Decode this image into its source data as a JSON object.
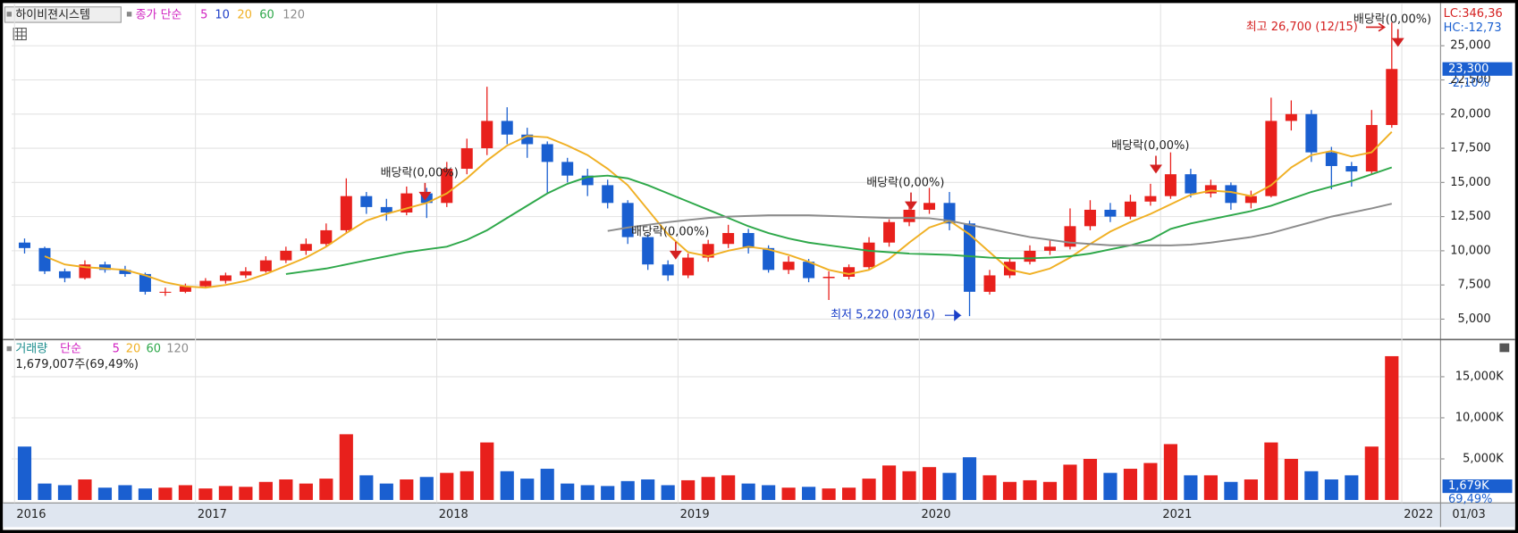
{
  "chart_data": [
    {
      "type": "candlestick",
      "title": "하이비젼시스템",
      "ma_caption": "종가 단순",
      "ma_labels": [
        "5",
        "10",
        "20",
        "60",
        "120"
      ],
      "ma_colors": [
        "#d020c0",
        "#2040c8",
        "#f0b024",
        "#2ea84a",
        "#8c8c8c"
      ],
      "categories": [
        "2016",
        null,
        null,
        null,
        null,
        null,
        null,
        null,
        null,
        "2017",
        null,
        null,
        null,
        null,
        null,
        null,
        null,
        null,
        null,
        null,
        null,
        "2018",
        null,
        null,
        null,
        null,
        null,
        null,
        null,
        null,
        null,
        null,
        null,
        "2019",
        null,
        null,
        null,
        null,
        null,
        null,
        null,
        null,
        null,
        null,
        null,
        "2020",
        null,
        null,
        null,
        null,
        null,
        null,
        null,
        null,
        null,
        null,
        null,
        "2021",
        null,
        null,
        null,
        null,
        null,
        null,
        null,
        null,
        null,
        null,
        null,
        "2022"
      ],
      "open": [
        10600,
        10200,
        8500,
        8000,
        9000,
        8600,
        8300,
        7000,
        7000,
        7400,
        7800,
        8200,
        8500,
        9300,
        10000,
        10500,
        11500,
        14000,
        13200,
        12800,
        14200,
        13500,
        16000,
        17500,
        19500,
        18500,
        17800,
        16500,
        15500,
        14800,
        13500,
        11000,
        9000,
        8200,
        9500,
        10500,
        11300,
        10200,
        8600,
        9200,
        8000,
        8100,
        8800,
        10600,
        12100,
        13000,
        13500,
        12000,
        7000,
        8200,
        9200,
        10000,
        10300,
        11800,
        13000,
        12500,
        13600,
        14000,
        15600,
        14200,
        14800,
        13500,
        14000,
        19500,
        20000,
        17200,
        16200,
        15800,
        19200,
        null
      ],
      "high": [
        10900,
        10300,
        8700,
        9300,
        9200,
        8900,
        8400,
        7300,
        7600,
        8000,
        8400,
        8800,
        9600,
        10300,
        10900,
        12000,
        15300,
        14300,
        13800,
        14700,
        14600,
        16500,
        18200,
        22000,
        20500,
        19000,
        18000,
        16800,
        16000,
        15200,
        13700,
        11200,
        9300,
        9800,
        10800,
        11900,
        11600,
        10400,
        9600,
        9400,
        8500,
        9000,
        11000,
        12300,
        13400,
        14600,
        14300,
        12200,
        8600,
        9500,
        10400,
        10800,
        13100,
        13700,
        13500,
        14100,
        14900,
        17200,
        16000,
        15200,
        15000,
        14400,
        21200,
        21000,
        20300,
        17600,
        16500,
        20300,
        26700,
        null
      ],
      "low": [
        9800,
        8300,
        7700,
        7900,
        8400,
        8100,
        6800,
        6700,
        6900,
        7300,
        7600,
        8000,
        8400,
        9100,
        9700,
        10300,
        11300,
        12700,
        12200,
        12600,
        12400,
        13200,
        15600,
        17000,
        17800,
        16800,
        14200,
        15000,
        14000,
        13100,
        10500,
        8600,
        7800,
        8000,
        9200,
        10200,
        9800,
        8400,
        8300,
        7700,
        6400,
        7900,
        8600,
        10300,
        11800,
        12700,
        11500,
        5220,
        6800,
        8000,
        9000,
        9700,
        10100,
        11500,
        12100,
        12300,
        13300,
        13800,
        13900,
        13900,
        13000,
        13100,
        13900,
        18800,
        16500,
        14500,
        14700,
        15600,
        19000,
        null
      ],
      "close": [
        10200,
        8500,
        8000,
        9000,
        8600,
        8300,
        7000,
        7000,
        7400,
        7800,
        8200,
        8500,
        9300,
        10000,
        10500,
        11500,
        14000,
        13200,
        12800,
        14200,
        13500,
        16000,
        17500,
        19500,
        18500,
        17800,
        16500,
        15500,
        14800,
        13500,
        11000,
        9000,
        8200,
        9500,
        10500,
        11300,
        10200,
        8600,
        9200,
        8000,
        8100,
        8800,
        10600,
        12100,
        13000,
        13500,
        12000,
        7000,
        8200,
        9200,
        10000,
        10300,
        11800,
        13000,
        12500,
        13600,
        14000,
        15600,
        14200,
        14800,
        13500,
        14000,
        19500,
        20000,
        17200,
        16200,
        15800,
        19200,
        23300,
        null
      ],
      "up_color": "#e8201c",
      "down_color": "#1a5fd0",
      "series": [
        {
          "color": "#f0b024",
          "values": [
            null,
            9600,
            9000,
            8800,
            8700,
            8600,
            8200,
            7700,
            7400,
            7300,
            7500,
            7800,
            8300,
            8900,
            9500,
            10300,
            11300,
            12200,
            12700,
            13100,
            13500,
            14200,
            15300,
            16600,
            17700,
            18400,
            18300,
            17700,
            17000,
            16000,
            14800,
            13000,
            11200,
            9900,
            9600,
            10000,
            10300,
            10100,
            9700,
            9200,
            8600,
            8300,
            8600,
            9400,
            10600,
            11700,
            12200,
            11200,
            9900,
            8600,
            8300,
            8700,
            9500,
            10500,
            11400,
            12100,
            12700,
            13400,
            14100,
            14400,
            14300,
            14000,
            14800,
            16100,
            17000,
            17300,
            16900,
            17200,
            18700,
            null
          ]
        },
        {
          "color": "#2ea84a",
          "values": [
            null,
            null,
            null,
            null,
            null,
            null,
            null,
            null,
            null,
            null,
            null,
            null,
            null,
            8300,
            8500,
            8700,
            9000,
            9300,
            9600,
            9900,
            10100,
            10300,
            10800,
            11500,
            12400,
            13300,
            14200,
            14900,
            15400,
            15500,
            15300,
            14800,
            14200,
            13600,
            13000,
            12400,
            11800,
            11300,
            10900,
            10600,
            10400,
            10200,
            10000,
            9900,
            9800,
            9750,
            9700,
            9600,
            9500,
            9450,
            9450,
            9500,
            9600,
            9800,
            10100,
            10400,
            10800,
            11600,
            12000,
            12300,
            12600,
            12900,
            13300,
            13800,
            14300,
            14700,
            15100,
            15600,
            16100,
            null
          ]
        },
        {
          "color": "#8c8c8c",
          "values": [
            null,
            null,
            null,
            null,
            null,
            null,
            null,
            null,
            null,
            null,
            null,
            null,
            null,
            null,
            null,
            null,
            null,
            null,
            null,
            null,
            null,
            null,
            null,
            null,
            null,
            null,
            null,
            null,
            null,
            11450,
            11700,
            11900,
            12100,
            12250,
            12400,
            12500,
            12550,
            12600,
            12600,
            12600,
            12550,
            12500,
            12450,
            12400,
            12400,
            12380,
            12200,
            11900,
            11600,
            11300,
            11000,
            10800,
            10600,
            10500,
            10400,
            10400,
            10400,
            10390,
            10450,
            10600,
            10800,
            11000,
            11300,
            11700,
            12100,
            12500,
            12800,
            13100,
            13440,
            null
          ]
        }
      ],
      "ylim": [
        3510,
        27770
      ],
      "yticks": [
        {
          "value": 5000,
          "label": "5,000"
        },
        {
          "value": 7500,
          "label": "7,500"
        },
        {
          "value": 10000,
          "label": "10,000"
        },
        {
          "value": 12500,
          "label": "12,500"
        },
        {
          "value": 15000,
          "label": "15,000"
        },
        {
          "value": 17500,
          "label": "17,500"
        },
        {
          "value": 20000,
          "label": "20,000"
        },
        {
          "value": 22500,
          "label": "22,500"
        },
        {
          "value": 25000,
          "label": "25,000"
        }
      ],
      "grid": true,
      "annotations": [
        "최고 26,700 (12/15)",
        "최저 5,220 (03/16)",
        "배당락(0,00%)",
        "배당락(0,00%)",
        "배당락(0,00%)",
        "배당락(0,00%)",
        "배당락(0,00%)"
      ],
      "indicators": {
        "lc": "LC:346,36",
        "hc": "HC:-12,73",
        "last": {
          "value": 23300,
          "label": "23,300"
        },
        "change": "-2,10%"
      }
    },
    {
      "type": "bar",
      "title": "거래량",
      "ma_caption": "단순",
      "ma_labels": [
        "5",
        "20",
        "60",
        "120"
      ],
      "ma_colors": [
        "#d020c0",
        "#f0b024",
        "#2ea84a",
        "#8c8c8c"
      ],
      "subtitle": "1,679,007주(69,49%)",
      "values": [
        6500,
        2000,
        1800,
        2500,
        1500,
        1800,
        1400,
        1500,
        1800,
        1400,
        1700,
        1600,
        2200,
        2500,
        2000,
        2600,
        8000,
        3000,
        2000,
        2500,
        2800,
        3300,
        3500,
        7000,
        3500,
        2600,
        3800,
        2000,
        1800,
        1700,
        2300,
        2500,
        1800,
        2400,
        2800,
        3000,
        2000,
        1800,
        1500,
        1600,
        1400,
        1500,
        2600,
        4200,
        3500,
        4000,
        3300,
        5200,
        3000,
        2200,
        2400,
        2200,
        4300,
        5000,
        3300,
        3800,
        4500,
        6800,
        3000,
        3000,
        2200,
        2500,
        7000,
        5000,
        3500,
        2500,
        3000,
        6500,
        17500,
        null
      ],
      "up_color": "#e8201c",
      "down_color": "#1a5fd0",
      "ylim": [
        0,
        19060
      ],
      "yticks": [
        {
          "value": 5000,
          "label": "5,000K"
        },
        {
          "value": 10000,
          "label": "10,000K"
        },
        {
          "value": 15000,
          "label": "15,000K"
        }
      ],
      "grid": true,
      "last": {
        "value": 1679,
        "label": "1,679K"
      },
      "ratio": "69,49%",
      "date_label": "01/03"
    }
  ]
}
